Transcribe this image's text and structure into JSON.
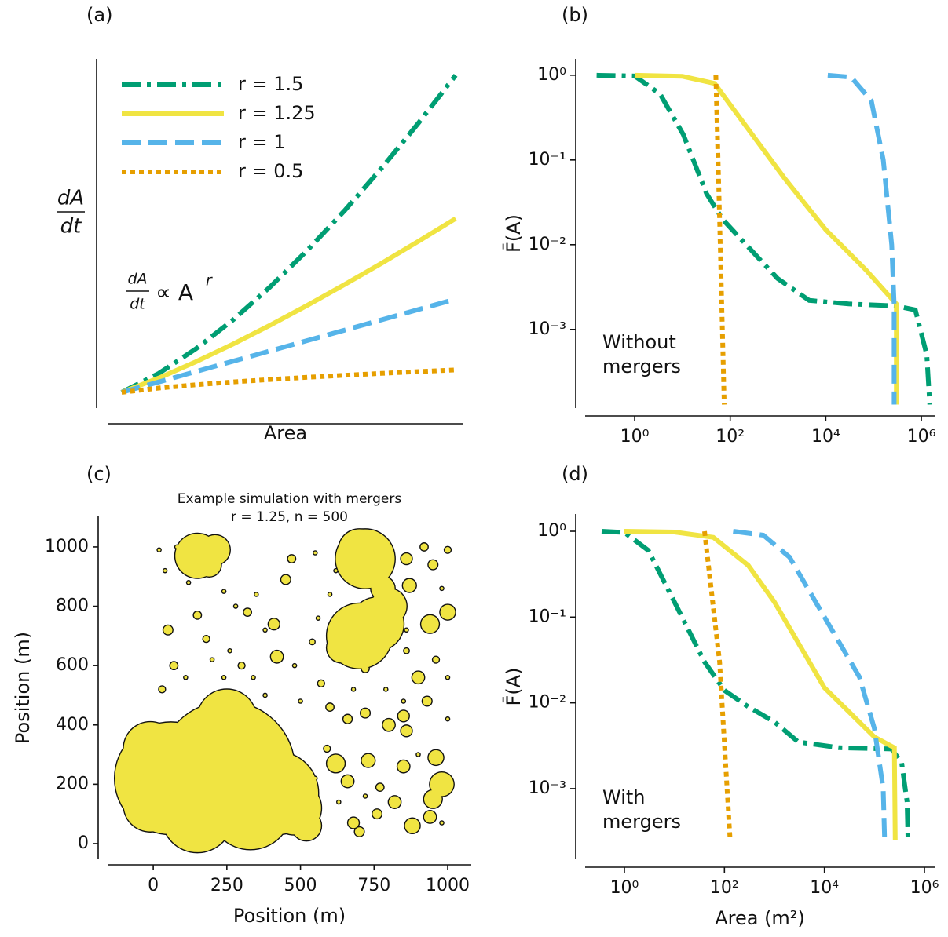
{
  "chart_data": [
    {
      "type": "line",
      "panel_label": "(a)",
      "xlabel": "Area",
      "ylabel": {
        "numerator": "dA",
        "denominator": "dt"
      },
      "annotation": {
        "numerator": "dA",
        "denominator": "dt",
        "relation": "∝ A",
        "exponent": "r"
      },
      "legend": "upper left",
      "x": [
        1,
        2,
        3,
        4,
        5,
        6,
        7,
        8,
        9,
        10
      ],
      "xlim": [
        0.62,
        10.21
      ],
      "ylim": [
        -0.52,
        33.2
      ],
      "series": [
        {
          "name": "r = 1.5",
          "color": "#009e73",
          "style": "dashdot",
          "values": [
            1,
            2.83,
            5.2,
            8,
            11.18,
            14.7,
            18.52,
            22.63,
            27,
            31.62
          ]
        },
        {
          "name": "r = 1.25",
          "color": "#f0e442",
          "style": "solid",
          "values": [
            1,
            2.38,
            3.95,
            5.66,
            7.48,
            9.39,
            11.39,
            13.45,
            15.59,
            17.78
          ]
        },
        {
          "name": "r = 1",
          "color": "#56b4e9",
          "style": "dashed",
          "values": [
            1,
            2,
            3,
            4,
            5,
            6,
            7,
            8,
            9,
            10
          ]
        },
        {
          "name": "r = 0.5",
          "color": "#e69f00",
          "style": "dotted",
          "values": [
            1,
            1.41,
            1.73,
            2,
            2.24,
            2.45,
            2.65,
            2.83,
            3,
            3.16
          ]
        }
      ]
    },
    {
      "type": "line",
      "panel_label": "(b)",
      "ylabel": "F̄(A)",
      "annotation": [
        "Without",
        "mergers"
      ],
      "xscale": "log",
      "yscale": "log",
      "xlim": [
        0.092,
        1900000
      ],
      "ylim": [
        0.000118,
        1.56
      ],
      "xticks": [
        {
          "value": 1,
          "label": "10⁰"
        },
        {
          "value": 100,
          "label": "10²"
        },
        {
          "value": 10000,
          "label": "10⁴"
        },
        {
          "value": 1000000,
          "label": "10⁶"
        }
      ],
      "yticks": [
        {
          "value": 1,
          "label": "10⁰"
        },
        {
          "value": 0.1,
          "label": "10⁻¹"
        },
        {
          "value": 0.01,
          "label": "10⁻²"
        },
        {
          "value": 0.001,
          "label": "10⁻³"
        }
      ],
      "series": [
        {
          "color": "#009e73",
          "style": "dashdot",
          "x": [
            0.16,
            1,
            3.4,
            10.4,
            32,
            69,
            215,
            980,
            4500,
            30000,
            280000,
            750000,
            1300000,
            1500000
          ],
          "values": [
            1,
            0.98,
            0.6,
            0.2,
            0.04,
            0.02,
            0.01,
            0.004,
            0.0022,
            0.002,
            0.0019,
            0.0017,
            0.0005,
            0.00013
          ]
        },
        {
          "color": "#f0e442",
          "style": "solid",
          "x": [
            1,
            10,
            47,
            215,
            1400,
            10000,
            70000,
            300000,
            300000
          ],
          "values": [
            1,
            0.97,
            0.8,
            0.25,
            0.06,
            0.015,
            0.005,
            0.002,
            0.00013
          ]
        },
        {
          "color": "#56b4e9",
          "style": "dashed",
          "x": [
            11000,
            34000,
            90000,
            160000,
            240000,
            270000,
            270000
          ],
          "values": [
            1,
            0.95,
            0.5,
            0.1,
            0.01,
            0.002,
            0.00013
          ]
        },
        {
          "color": "#e69f00",
          "style": "dotted",
          "x": [
            50,
            60,
            75
          ],
          "values": [
            1,
            0.02,
            0.00013
          ]
        }
      ]
    },
    {
      "type": "scatter",
      "panel_label": "(c)",
      "title": "Example simulation with mergers",
      "subtitle": "r = 1.25, n = 500",
      "xlabel": "Position (m)",
      "ylabel": "Position (m)",
      "color": "#f0e442",
      "xlim": [
        -155,
        1080
      ],
      "ylim": [
        -53,
        1103
      ],
      "xticks": [
        0,
        250,
        500,
        750,
        1000
      ],
      "yticks": [
        0,
        200,
        400,
        600,
        800,
        1000
      ],
      "x": [
        60,
        250,
        420,
        480,
        250,
        -10,
        -10,
        150,
        330,
        520,
        150,
        210,
        190,
        720,
        700,
        700,
        760,
        800,
        780,
        640,
        470,
        450,
        320,
        410,
        420,
        300,
        150,
        50,
        180,
        70,
        30,
        1000,
        940,
        870,
        950,
        860,
        920,
        1000,
        900,
        930,
        860,
        850,
        820,
        880,
        980,
        950,
        960,
        940,
        730,
        620,
        660,
        680,
        700,
        760,
        770,
        600,
        660,
        720,
        800,
        850,
        570,
        540,
        590,
        720,
        960,
        860,
        20,
        80,
        40,
        120,
        240,
        280,
        350,
        380,
        260,
        200,
        110,
        240,
        340,
        380,
        480,
        500,
        560,
        600,
        550,
        620,
        860,
        980,
        1000,
        1000,
        790,
        680,
        550,
        560,
        630,
        850,
        900,
        720,
        980
      ],
      "values": [
        220,
        250,
        170,
        120,
        420,
        320,
        130,
        90,
        120,
        60,
        970,
        990,
        940,
        960,
        990,
        700,
        740,
        800,
        860,
        660,
        960,
        890,
        780,
        740,
        630,
        600,
        770,
        720,
        690,
        600,
        520,
        780,
        740,
        870,
        940,
        960,
        1000,
        990,
        560,
        480,
        380,
        260,
        140,
        60,
        200,
        150,
        290,
        90,
        280,
        270,
        210,
        70,
        40,
        100,
        190,
        460,
        420,
        440,
        400,
        430,
        540,
        680,
        320,
        590,
        620,
        650,
        990,
        1000,
        920,
        880,
        850,
        800,
        840,
        720,
        650,
        620,
        560,
        560,
        560,
        500,
        600,
        480,
        760,
        840,
        980,
        920,
        720,
        860,
        560,
        420,
        520,
        520,
        220,
        80,
        140,
        480,
        300,
        160,
        70
      ],
      "sizes": [
        190,
        230,
        140,
        90,
        100,
        90,
        90,
        120,
        140,
        50,
        75,
        50,
        40,
        100,
        70,
        110,
        90,
        60,
        40,
        50,
        12,
        15,
        12,
        18,
        20,
        10,
        12,
        15,
        10,
        12,
        10,
        25,
        30,
        22,
        15,
        18,
        12,
        10,
        20,
        15,
        18,
        20,
        20,
        25,
        40,
        30,
        25,
        20,
        22,
        30,
        20,
        18,
        15,
        15,
        12,
        12,
        14,
        15,
        20,
        18,
        10,
        8,
        10,
        12,
        10,
        8,
        5,
        5,
        5,
        5,
        5,
        5,
        5,
        5,
        5,
        5,
        5,
        5,
        5,
        5,
        5,
        5,
        5,
        5,
        5,
        5,
        5,
        5,
        5,
        5,
        5,
        5,
        5,
        5,
        5,
        5,
        5,
        5,
        5
      ]
    },
    {
      "type": "line",
      "panel_label": "(d)",
      "ylabel": "F̄(A)",
      "xlabel": "Area (m²)",
      "annotation": [
        "With",
        "mergers"
      ],
      "xscale": "log",
      "yscale": "log",
      "xlim": [
        0.164,
        1600000
      ],
      "ylim": [
        0.00015,
        1.59
      ],
      "xticks": [
        {
          "value": 1,
          "label": "10⁰"
        },
        {
          "value": 100,
          "label": "10²"
        },
        {
          "value": 10000,
          "label": "10⁴"
        },
        {
          "value": 1000000,
          "label": "10⁶"
        }
      ],
      "yticks": [
        {
          "value": 1,
          "label": "10⁰"
        },
        {
          "value": 0.1,
          "label": "10⁻¹"
        },
        {
          "value": 0.01,
          "label": "10⁻²"
        },
        {
          "value": 0.001,
          "label": "10⁻³"
        }
      ],
      "series": [
        {
          "color": "#009e73",
          "style": "dashdot",
          "x": [
            0.35,
            1,
            3,
            10,
            40,
            100,
            300,
            1000,
            3000,
            20000,
            220000,
            350000,
            450000,
            470000
          ],
          "values": [
            1,
            0.97,
            0.6,
            0.15,
            0.03,
            0.014,
            0.009,
            0.006,
            0.0035,
            0.003,
            0.0029,
            0.002,
            0.0007,
            0.00025
          ]
        },
        {
          "color": "#f0e442",
          "style": "solid",
          "x": [
            1,
            10,
            60,
            300,
            1000,
            3000,
            10000,
            30000,
            100000,
            250000,
            260000
          ],
          "values": [
            1,
            0.98,
            0.85,
            0.4,
            0.15,
            0.05,
            0.015,
            0.008,
            0.004,
            0.003,
            0.00025
          ]
        },
        {
          "color": "#56b4e9",
          "style": "dashed",
          "x": [
            150,
            600,
            2000,
            10000,
            50000,
            100000,
            150000,
            160000
          ],
          "values": [
            1,
            0.9,
            0.5,
            0.1,
            0.02,
            0.005,
            0.001,
            0.00025
          ]
        },
        {
          "color": "#e69f00",
          "style": "dotted",
          "x": [
            40,
            80,
            130
          ],
          "values": [
            1,
            0.03,
            0.00025
          ]
        }
      ]
    }
  ]
}
